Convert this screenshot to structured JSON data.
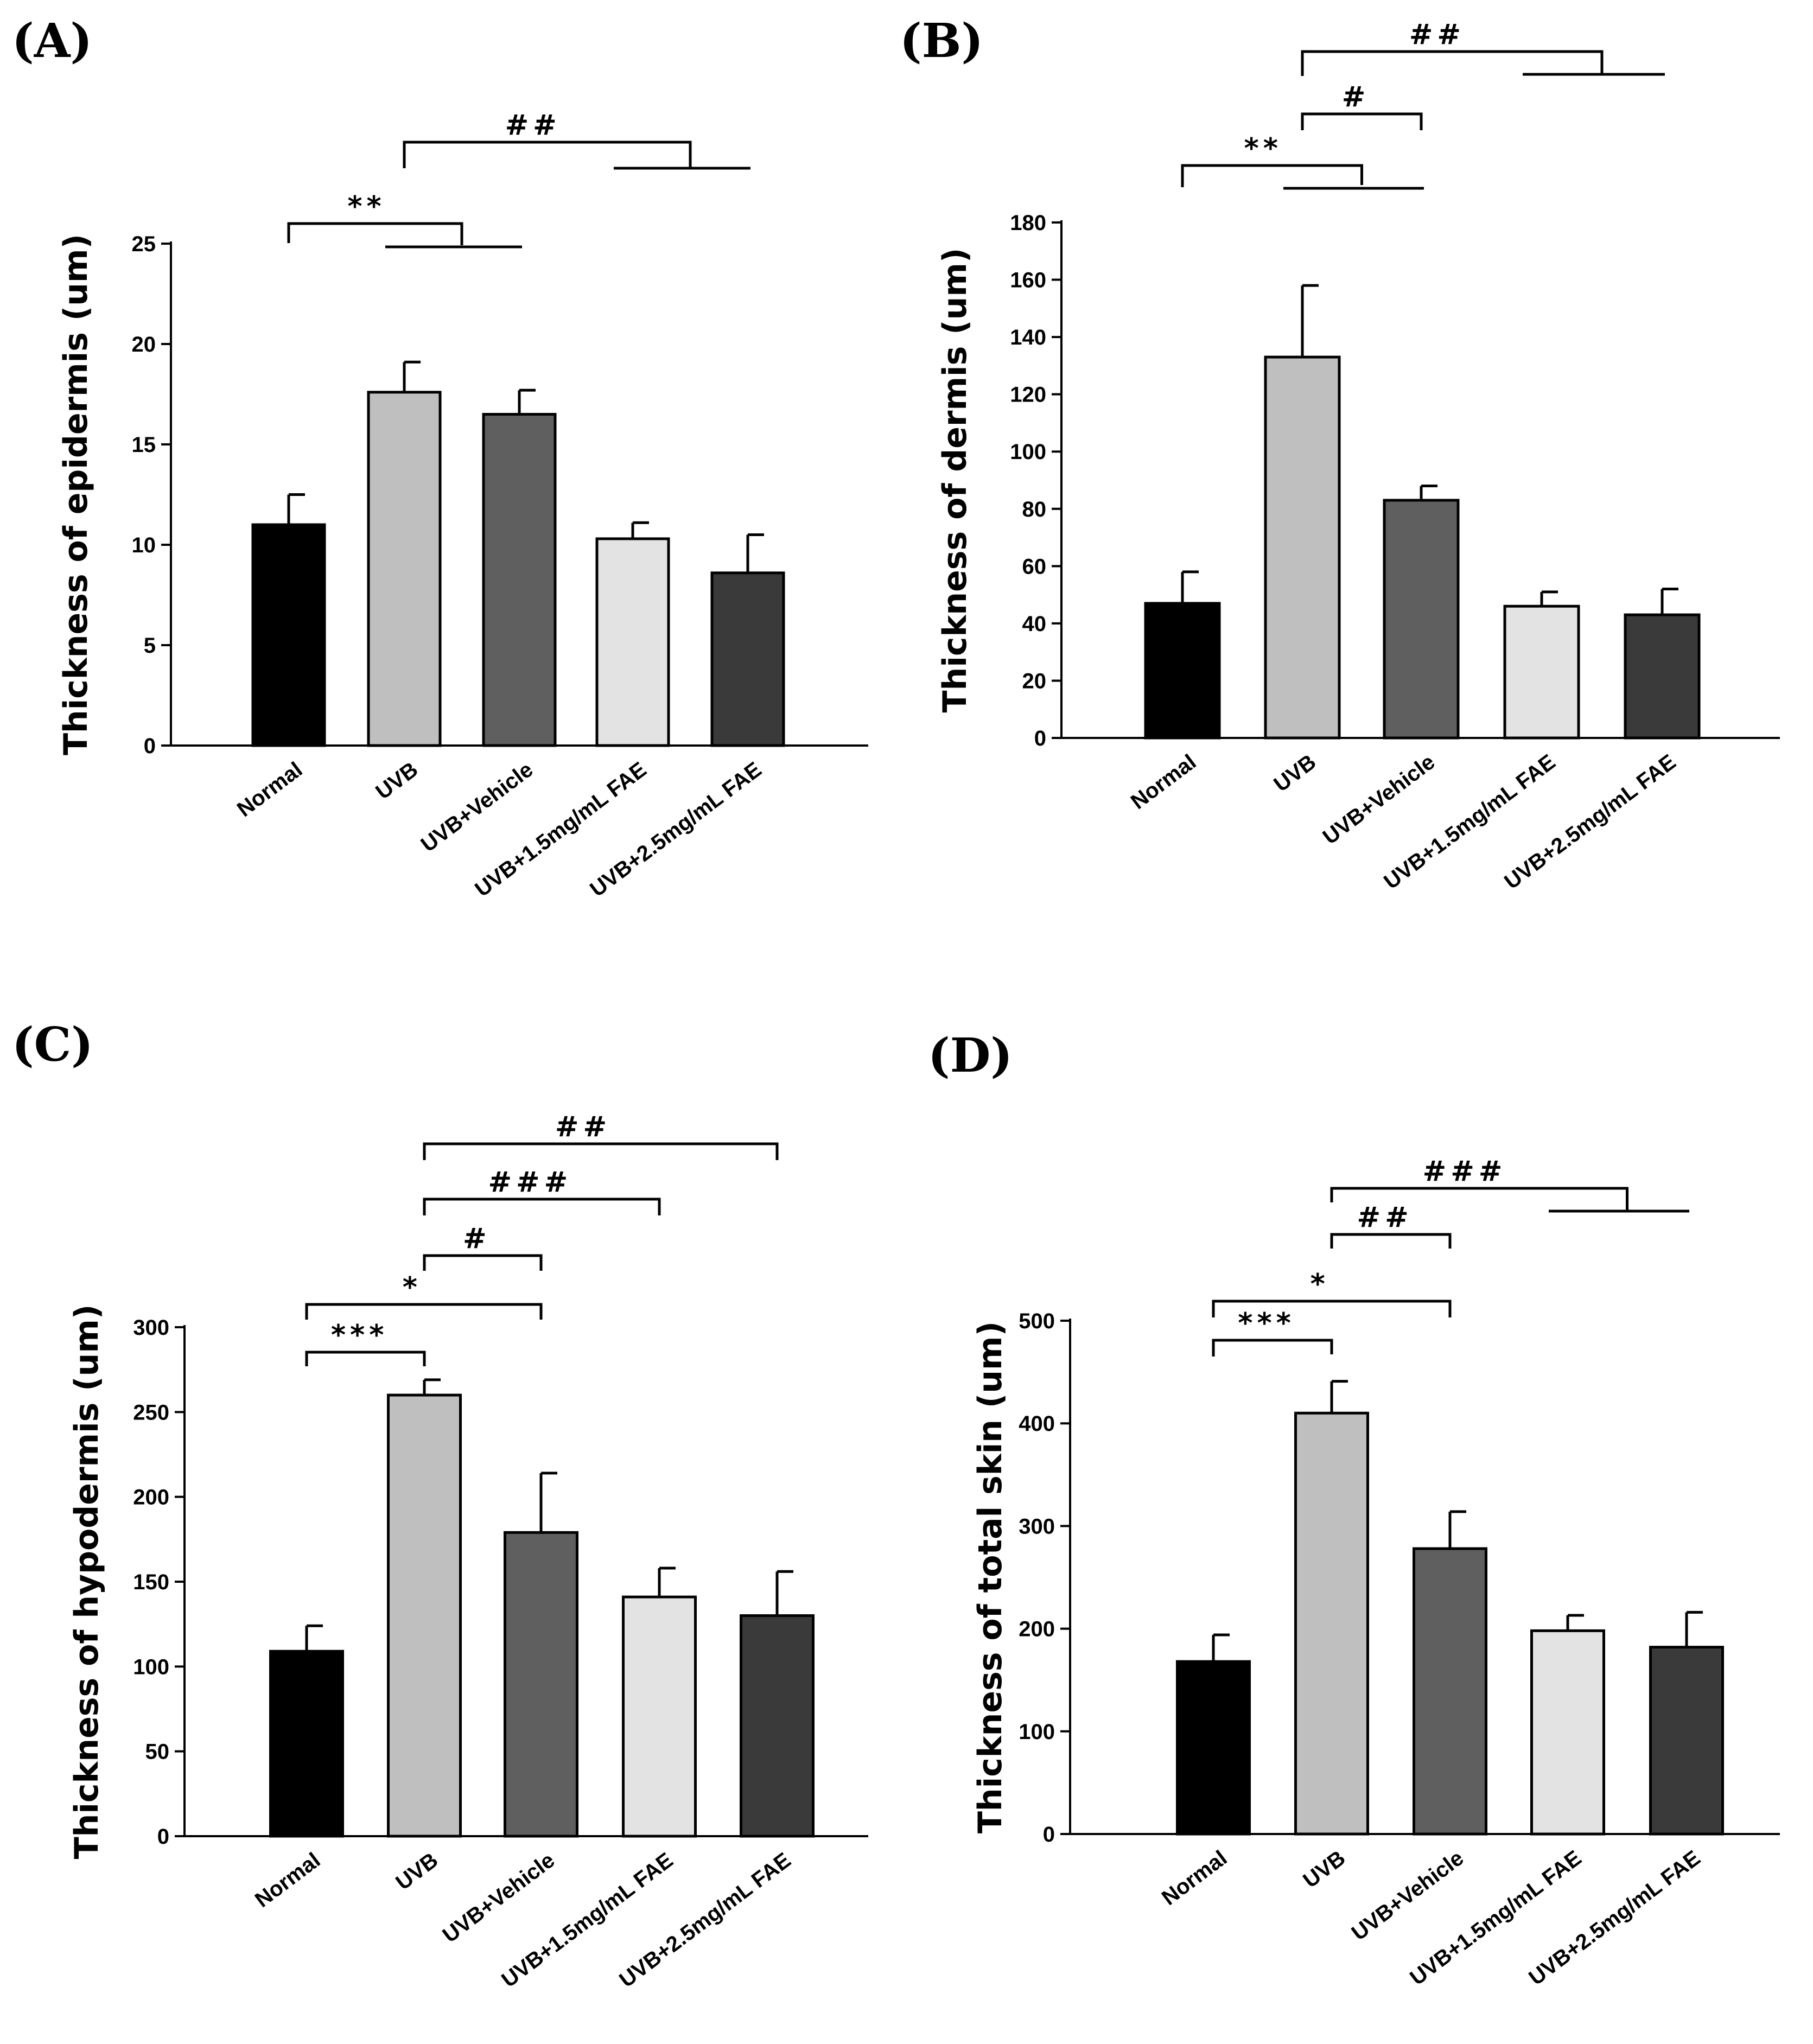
{
  "chart_data": [
    {
      "type": "bar",
      "panel_label": "(A)",
      "ylabel": "Thickness of epidermis (um)",
      "categories": [
        "Normal",
        "UVB",
        "UVB+Vehicle",
        "UVB+1.5mg/mL FAE",
        "UVB+2.5mg/mL FAE"
      ],
      "values": [
        11.0,
        17.6,
        16.5,
        10.3,
        8.6
      ],
      "errors": [
        1.5,
        1.5,
        1.2,
        0.8,
        1.9
      ],
      "bar_colors": [
        "#000000",
        "#bfbfbf",
        "#5f5f5f",
        "#e3e3e3",
        "#3a3a3a"
      ],
      "ylim": [
        0,
        25
      ],
      "yticks": [
        0,
        5,
        10,
        15,
        20,
        25
      ],
      "significance": [
        {
          "label": "**",
          "from": 0,
          "to": [
            1,
            2
          ]
        },
        {
          "label": "##",
          "from": 1,
          "to": [
            3,
            4
          ]
        }
      ]
    },
    {
      "type": "bar",
      "panel_label": "(B)",
      "ylabel": "Thickness of dermis (um)",
      "categories": [
        "Normal",
        "UVB",
        "UVB+Vehicle",
        "UVB+1.5mg/mL FAE",
        "UVB+2.5mg/mL FAE"
      ],
      "values": [
        47,
        133,
        83,
        46,
        43
      ],
      "errors": [
        11,
        25,
        5,
        5,
        9
      ],
      "bar_colors": [
        "#000000",
        "#bfbfbf",
        "#5f5f5f",
        "#e3e3e3",
        "#3a3a3a"
      ],
      "ylim": [
        0,
        180
      ],
      "yticks": [
        0,
        20,
        40,
        60,
        80,
        100,
        120,
        140,
        160,
        180
      ],
      "significance": [
        {
          "label": "**",
          "from": 0,
          "to": [
            1,
            2
          ]
        },
        {
          "label": "#",
          "from": 1,
          "to": [
            2
          ]
        },
        {
          "label": "##",
          "from": 1,
          "to": [
            3,
            4
          ]
        }
      ]
    },
    {
      "type": "bar",
      "panel_label": "(C)",
      "ylabel": "Thickness of hypodermis (um)",
      "categories": [
        "Normal",
        "UVB",
        "UVB+Vehicle",
        "UVB+1.5mg/mL FAE",
        "UVB+2.5mg/mL FAE"
      ],
      "values": [
        109,
        260,
        179,
        141,
        130
      ],
      "errors": [
        15,
        9,
        35,
        17,
        26
      ],
      "bar_colors": [
        "#000000",
        "#bfbfbf",
        "#5f5f5f",
        "#e3e3e3",
        "#3a3a3a"
      ],
      "ylim": [
        0,
        300
      ],
      "yticks": [
        0,
        50,
        100,
        150,
        200,
        250,
        300
      ],
      "significance": [
        {
          "label": "***",
          "from": 0,
          "to": [
            1
          ]
        },
        {
          "label": "*",
          "from": 0,
          "to": [
            2
          ]
        },
        {
          "label": "#",
          "from": 1,
          "to": [
            2
          ]
        },
        {
          "label": "###",
          "from": 1,
          "to": [
            3
          ]
        },
        {
          "label": "##",
          "from": 1,
          "to": [
            4
          ]
        }
      ]
    },
    {
      "type": "bar",
      "panel_label": "(D)",
      "ylabel": "Thickness of total skin (um)",
      "categories": [
        "Normal",
        "UVB",
        "UVB+Vehicle",
        "UVB+1.5mg/mL FAE",
        "UVB+2.5mg/mL FAE"
      ],
      "values": [
        168,
        410,
        278,
        198,
        182
      ],
      "errors": [
        26,
        31,
        36,
        15,
        34
      ],
      "bar_colors": [
        "#000000",
        "#bfbfbf",
        "#5f5f5f",
        "#e3e3e3",
        "#3a3a3a"
      ],
      "ylim": [
        0,
        500
      ],
      "yticks": [
        0,
        100,
        200,
        300,
        400,
        500
      ],
      "significance": [
        {
          "label": "***",
          "from": 0,
          "to": [
            1
          ]
        },
        {
          "label": "*",
          "from": 0,
          "to": [
            2
          ]
        },
        {
          "label": "##",
          "from": 1,
          "to": [
            2
          ]
        },
        {
          "label": "###",
          "from": 1,
          "to": [
            3,
            4
          ]
        }
      ]
    }
  ]
}
